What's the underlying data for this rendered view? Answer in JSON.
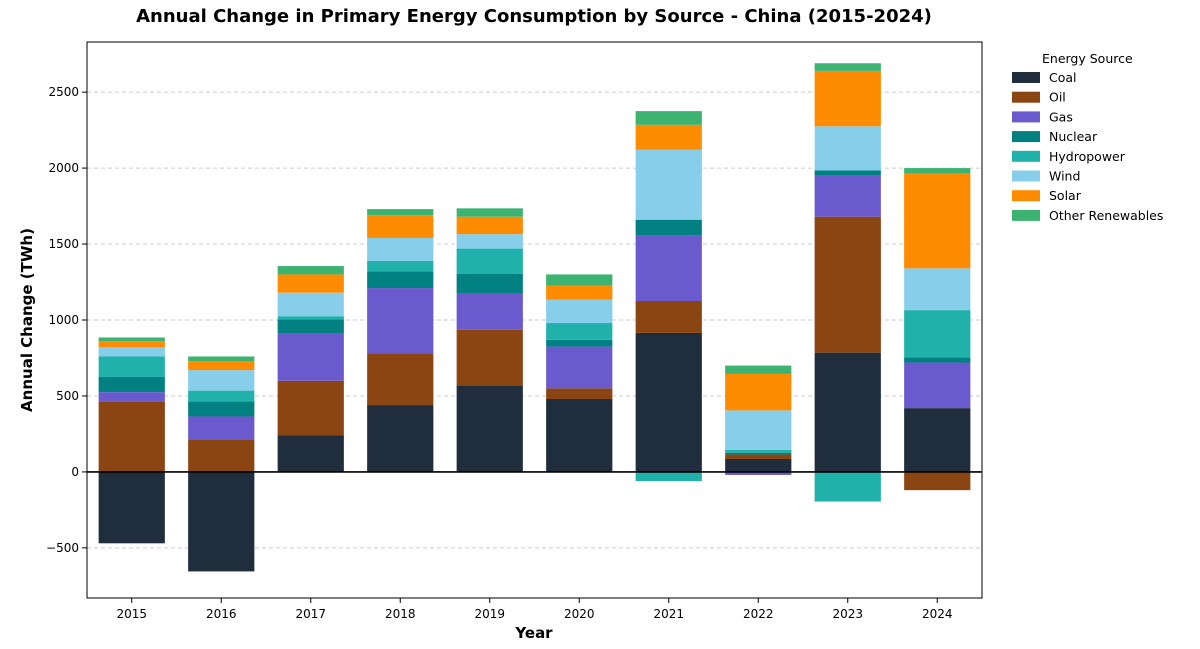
{
  "chart_data": {
    "type": "bar",
    "stacked": true,
    "title": "Annual Change in Primary Energy Consumption by Source - China (2015-2024)",
    "xlabel": "Year",
    "ylabel": "Annual Change (TWh)",
    "ylim": [
      -830,
      2830
    ],
    "yticks": [
      -500,
      0,
      500,
      1000,
      1500,
      2000,
      2500
    ],
    "grid": "y-dashed",
    "zero_line": true,
    "categories": [
      "2015",
      "2016",
      "2017",
      "2018",
      "2019",
      "2020",
      "2021",
      "2022",
      "2023",
      "2024"
    ],
    "legend": {
      "title": "Energy Source",
      "placement": "outside-right"
    },
    "series": [
      {
        "name": "Coal",
        "color": "#1f2d3d",
        "values": [
          -470,
          -655,
          240,
          440,
          570,
          480,
          915,
          85,
          785,
          420
        ]
      },
      {
        "name": "Oil",
        "color": "#8b4513",
        "values": [
          465,
          215,
          360,
          340,
          365,
          70,
          210,
          30,
          895,
          -120
        ]
      },
      {
        "name": "Gas",
        "color": "#6a5acd",
        "values": [
          60,
          150,
          310,
          430,
          240,
          275,
          430,
          -20,
          270,
          300
        ]
      },
      {
        "name": "Nuclear",
        "color": "#008080",
        "values": [
          100,
          100,
          95,
          110,
          130,
          45,
          105,
          10,
          35,
          35
        ]
      },
      {
        "name": "Hydropower",
        "color": "#20b2aa",
        "values": [
          135,
          70,
          20,
          70,
          165,
          110,
          -60,
          20,
          -195,
          310
        ]
      },
      {
        "name": "Wind",
        "color": "#87ceeb",
        "values": [
          60,
          135,
          155,
          150,
          95,
          155,
          460,
          260,
          290,
          275
        ]
      },
      {
        "name": "Solar",
        "color": "#ff8c00",
        "values": [
          40,
          60,
          120,
          150,
          115,
          90,
          165,
          240,
          365,
          625
        ]
      },
      {
        "name": "Other Renewables",
        "color": "#3cb371",
        "values": [
          25,
          30,
          55,
          40,
          55,
          75,
          90,
          55,
          50,
          35
        ]
      }
    ]
  }
}
